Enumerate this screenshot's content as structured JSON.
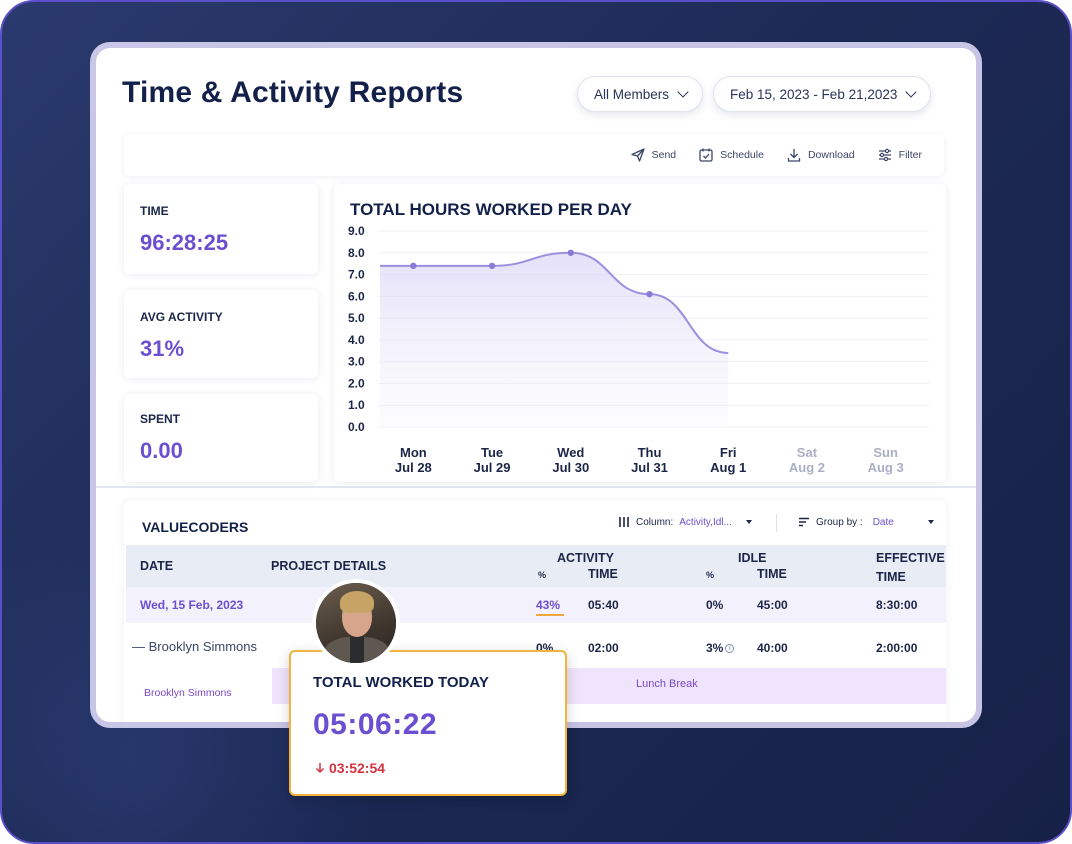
{
  "header": {
    "title": "Time & Activity Reports",
    "members_filter": "All Members",
    "date_range": "Feb 15, 2023 - Feb 21,2023"
  },
  "toolbar": {
    "send": "Send",
    "schedule": "Schedule",
    "download": "Download",
    "filter": "Filter"
  },
  "stats": {
    "time_label": "TIME",
    "time_value": "96:28:25",
    "activity_label": "AVG ACTIVITY",
    "activity_value": "31%",
    "spent_label": "SPENT",
    "spent_value": "0.00"
  },
  "chart_data": {
    "type": "area",
    "title": "TOTAL HOURS WORKED PER DAY",
    "categories": [
      [
        "Mon",
        "Jul 28"
      ],
      [
        "Tue",
        "Jul 29"
      ],
      [
        "Wed",
        "Jul 30"
      ],
      [
        "Thu",
        "Jul 31"
      ],
      [
        "Fri",
        "Aug 1"
      ],
      [
        "Sat",
        "Aug 2"
      ],
      [
        "Sun",
        "Aug 3"
      ]
    ],
    "category_active": [
      true,
      true,
      true,
      true,
      true,
      false,
      false
    ],
    "values": [
      7.4,
      7.4,
      8.0,
      6.1,
      3.4,
      null,
      null
    ],
    "ylim": [
      0,
      9
    ],
    "yticks": [
      "0.0",
      "1.0",
      "2.0",
      "3.0",
      "4.0",
      "5.0",
      "6.0",
      "7.0",
      "8.0",
      "9.0"
    ],
    "grid": true,
    "line_color": "#9c8fe0"
  },
  "table": {
    "title": "VALUECODERS",
    "column_label": "Column:",
    "column_value": "Activity,Idl...",
    "group_label": "Group by :",
    "group_value": "Date",
    "headers": {
      "date": "DATE",
      "project": "PROJECT DETAILS",
      "activity": "ACTIVITY",
      "activity_pct": "%",
      "activity_time": "TIME",
      "idle": "IDLE",
      "idle_pct": "%",
      "idle_time": "TIME",
      "effective": "EFFECTIVE",
      "effective_time": "TIME"
    },
    "date_row": {
      "date": "Wed, 15 Feb, 2023",
      "activity_pct": "43%",
      "activity_time": "05:40",
      "idle_pct": "0%",
      "idle_time": "45:00",
      "effective_time": "8:30:00"
    },
    "person_row": {
      "name": "Brooklyn Simmons",
      "activity_pct": "0%",
      "activity_time": "02:00",
      "idle_pct": "3%",
      "idle_time": "40:00",
      "effective_time": "2:00:00"
    },
    "break_row": {
      "name": "Brooklyn Simmons",
      "label": "Lunch Break"
    }
  },
  "worked_today": {
    "title": "TOTAL WORKED TODAY",
    "value": "05:06:22",
    "delta": "03:52:54"
  }
}
